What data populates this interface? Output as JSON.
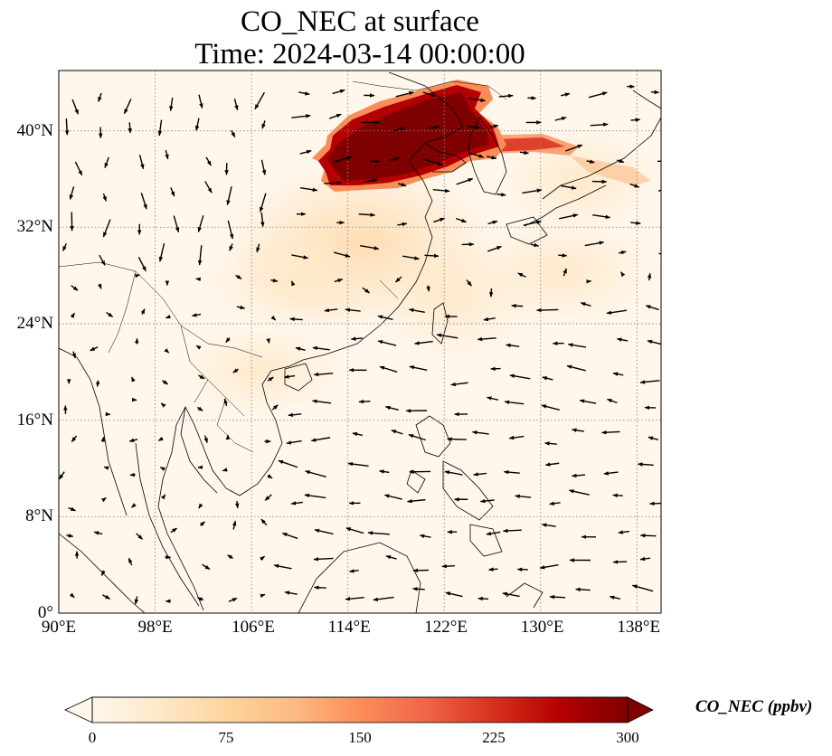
{
  "title": {
    "line1": "CO_NEC at surface",
    "line2": "Time: 2024-03-14 00:00:00"
  },
  "map": {
    "projection": "PlateCarree",
    "lon_range": [
      90,
      140
    ],
    "lat_range": [
      0,
      45
    ],
    "gridlines": "dotted",
    "lon_ticks": [
      {
        "value": 90,
        "label": "90°E"
      },
      {
        "value": 98,
        "label": "98°E"
      },
      {
        "value": 106,
        "label": "106°E"
      },
      {
        "value": 114,
        "label": "114°E"
      },
      {
        "value": 122,
        "label": "122°E"
      },
      {
        "value": 130,
        "label": "130°E"
      },
      {
        "value": 138,
        "label": "138°E"
      }
    ],
    "lat_ticks": [
      {
        "value": 0,
        "label": "0°"
      },
      {
        "value": 8,
        "label": "8°N"
      },
      {
        "value": 16,
        "label": "16°N"
      },
      {
        "value": 24,
        "label": "24°N"
      },
      {
        "value": 32,
        "label": "32°N"
      },
      {
        "value": 40,
        "label": "40°N"
      }
    ],
    "features": [
      "coastlines",
      "country borders",
      "wind vectors"
    ],
    "wind_regime": {
      "north_of_30N": "westerly / northwesterly",
      "south_of_25N": "northeasterly trades"
    },
    "pollution_hotspots": [
      {
        "region": "North China Plain",
        "level": "high (≥300 ppbv)"
      },
      {
        "region": "Korean Peninsula / East Sea plume",
        "level": "elevated"
      }
    ]
  },
  "colorbar": {
    "label": "CO_NEC (ppbv)",
    "colormap": "OrRd",
    "min": 0,
    "max": 300,
    "extend": "both",
    "ticks": [
      {
        "value": 0,
        "label": "0"
      },
      {
        "value": 75,
        "label": "75"
      },
      {
        "value": 150,
        "label": "150"
      },
      {
        "value": 225,
        "label": "225"
      },
      {
        "value": 300,
        "label": "300"
      }
    ],
    "colors": [
      "#fff7ec",
      "#fee8c8",
      "#fdd49e",
      "#fdbb84",
      "#fc8d59",
      "#ef6548",
      "#d7301f",
      "#b30000",
      "#7f0000"
    ]
  }
}
